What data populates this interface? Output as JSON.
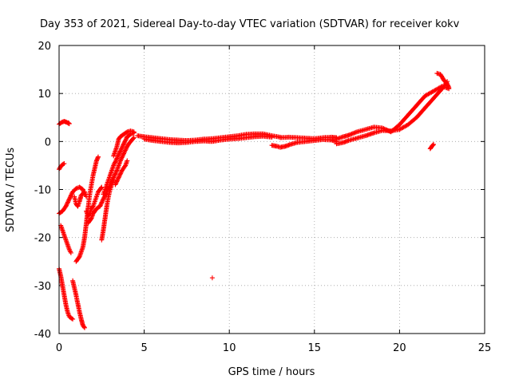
{
  "chart_data": {
    "type": "scatter",
    "title": "Day 353 of 2021, Sidereal Day-to-day VTEC variation (SDTVAR) for receiver kokv",
    "xlabel": "GPS time / hours",
    "ylabel": "SDTVAR / TECUs",
    "xlim": [
      0,
      25
    ],
    "ylim": [
      -40,
      20
    ],
    "x_ticks": [
      "0",
      "5",
      "10",
      "15",
      "20",
      "25"
    ],
    "y_ticks": [
      "20",
      "10",
      "0",
      "-10",
      "-20",
      "-30",
      "-40"
    ],
    "grid": true,
    "marker": "plus",
    "color": "#ff0000",
    "series": [
      {
        "name": "arc-1",
        "points": [
          [
            0.0,
            -5.8
          ],
          [
            0.1,
            -5.2
          ],
          [
            0.2,
            -4.8
          ],
          [
            0.3,
            -4.6
          ]
        ]
      },
      {
        "name": "arc-2",
        "points": [
          [
            0.0,
            3.6
          ],
          [
            0.15,
            4.0
          ],
          [
            0.3,
            4.2
          ],
          [
            0.45,
            4.0
          ],
          [
            0.6,
            3.7
          ],
          [
            0.55,
            3.9
          ]
        ]
      },
      {
        "name": "arc-3",
        "points": [
          [
            0.0,
            -15.0
          ],
          [
            0.2,
            -14.5
          ],
          [
            0.4,
            -13.5
          ],
          [
            0.6,
            -12.0
          ],
          [
            0.8,
            -10.5
          ],
          [
            1.0,
            -9.8
          ],
          [
            1.2,
            -9.5
          ],
          [
            1.4,
            -10.0
          ],
          [
            1.5,
            -11.0
          ]
        ]
      },
      {
        "name": "arc-4",
        "points": [
          [
            0.1,
            -17.5
          ],
          [
            0.2,
            -18.5
          ],
          [
            0.3,
            -19.5
          ],
          [
            0.4,
            -20.5
          ],
          [
            0.5,
            -21.5
          ],
          [
            0.6,
            -22.5
          ],
          [
            0.7,
            -23.2
          ]
        ]
      },
      {
        "name": "arc-5",
        "points": [
          [
            0.0,
            -26.5
          ],
          [
            0.1,
            -28.0
          ],
          [
            0.2,
            -30.0
          ],
          [
            0.3,
            -32.0
          ],
          [
            0.4,
            -34.0
          ],
          [
            0.5,
            -35.5
          ],
          [
            0.6,
            -36.5
          ],
          [
            0.8,
            -37.0
          ]
        ]
      },
      {
        "name": "arc-6",
        "points": [
          [
            0.8,
            -29.0
          ],
          [
            0.9,
            -30.5
          ],
          [
            1.0,
            -32.0
          ],
          [
            1.1,
            -33.8
          ],
          [
            1.2,
            -35.5
          ],
          [
            1.3,
            -37.0
          ],
          [
            1.4,
            -38.3
          ],
          [
            1.5,
            -38.8
          ]
        ]
      },
      {
        "name": "arc-7",
        "points": [
          [
            0.9,
            -11.5
          ],
          [
            1.0,
            -13.0
          ],
          [
            1.1,
            -13.5
          ],
          [
            1.2,
            -12.5
          ],
          [
            1.3,
            -11.2
          ],
          [
            1.5,
            -10.5
          ],
          [
            1.6,
            -11.5
          ]
        ]
      },
      {
        "name": "arc-8",
        "points": [
          [
            1.0,
            -25.0
          ],
          [
            1.1,
            -24.5
          ],
          [
            1.2,
            -24.0
          ],
          [
            1.3,
            -23.0
          ],
          [
            1.4,
            -22.0
          ],
          [
            1.5,
            -20.0
          ],
          [
            1.6,
            -17.0
          ],
          [
            1.7,
            -14.0
          ],
          [
            1.8,
            -11.0
          ],
          [
            1.9,
            -9.0
          ],
          [
            2.0,
            -7.0
          ],
          [
            2.1,
            -5.5
          ],
          [
            2.2,
            -4.0
          ],
          [
            2.3,
            -3.2
          ]
        ]
      },
      {
        "name": "arc-9",
        "points": [
          [
            1.6,
            -14.5
          ],
          [
            1.7,
            -15.5
          ],
          [
            1.8,
            -15.0
          ],
          [
            1.9,
            -14.0
          ],
          [
            2.0,
            -13.5
          ],
          [
            2.1,
            -12.5
          ],
          [
            2.2,
            -11.5
          ],
          [
            2.3,
            -10.5
          ],
          [
            2.4,
            -10.0
          ],
          [
            2.5,
            -9.5
          ]
        ]
      },
      {
        "name": "arc-10",
        "points": [
          [
            1.7,
            -17.0
          ],
          [
            1.8,
            -16.5
          ],
          [
            1.9,
            -16.0
          ],
          [
            2.0,
            -15.0
          ],
          [
            2.1,
            -14.5
          ],
          [
            2.2,
            -14.0
          ],
          [
            2.4,
            -13.5
          ],
          [
            2.6,
            -12.0
          ],
          [
            2.8,
            -10.5
          ],
          [
            3.0,
            -9.0
          ],
          [
            3.2,
            -7.5
          ],
          [
            3.4,
            -6.0
          ],
          [
            3.6,
            -4.0
          ],
          [
            3.8,
            -2.5
          ],
          [
            4.0,
            -1.0
          ],
          [
            4.2,
            0.0
          ],
          [
            4.4,
            0.8
          ]
        ]
      },
      {
        "name": "arc-11",
        "points": [
          [
            2.5,
            -20.5
          ],
          [
            2.6,
            -18.5
          ],
          [
            2.7,
            -16.0
          ],
          [
            2.8,
            -13.5
          ],
          [
            2.9,
            -11.5
          ],
          [
            3.0,
            -10.0
          ],
          [
            3.1,
            -9.0
          ],
          [
            3.2,
            -8.0
          ]
        ]
      },
      {
        "name": "arc-12",
        "points": [
          [
            2.6,
            -11.0
          ],
          [
            2.8,
            -9.0
          ],
          [
            3.0,
            -7.0
          ],
          [
            3.2,
            -5.0
          ],
          [
            3.4,
            -3.5
          ],
          [
            3.6,
            -2.0
          ],
          [
            3.8,
            -0.5
          ],
          [
            4.0,
            1.0
          ],
          [
            4.2,
            1.5
          ],
          [
            4.4,
            1.8
          ]
        ]
      },
      {
        "name": "arc-13",
        "points": [
          [
            3.2,
            -3.0
          ],
          [
            3.4,
            -1.0
          ],
          [
            3.5,
            0.5
          ],
          [
            3.6,
            1.0
          ],
          [
            3.8,
            1.5
          ],
          [
            4.0,
            2.0
          ],
          [
            4.2,
            2.2
          ],
          [
            4.4,
            2.0
          ]
        ]
      },
      {
        "name": "arc-14",
        "points": [
          [
            3.3,
            -9.0
          ],
          [
            3.5,
            -7.5
          ],
          [
            3.7,
            -6.0
          ],
          [
            3.9,
            -5.0
          ],
          [
            4.0,
            -4.0
          ]
        ]
      },
      {
        "name": "arc-15",
        "points": [
          [
            4.6,
            1.2
          ],
          [
            5.0,
            1.0
          ],
          [
            5.5,
            0.8
          ],
          [
            6.0,
            0.6
          ],
          [
            6.5,
            0.4
          ],
          [
            7.0,
            0.3
          ],
          [
            7.5,
            0.2
          ],
          [
            8.0,
            0.3
          ],
          [
            8.5,
            0.5
          ],
          [
            9.0,
            0.6
          ],
          [
            9.5,
            0.8
          ],
          [
            10.0,
            1.0
          ],
          [
            10.5,
            1.2
          ],
          [
            11.0,
            1.5
          ],
          [
            11.5,
            1.6
          ],
          [
            12.0,
            1.6
          ],
          [
            12.5,
            1.2
          ],
          [
            13.0,
            0.9
          ]
        ]
      },
      {
        "name": "arc-16",
        "points": [
          [
            5.0,
            0.5
          ],
          [
            5.5,
            0.2
          ],
          [
            6.0,
            0.0
          ],
          [
            6.5,
            -0.2
          ],
          [
            7.0,
            -0.3
          ],
          [
            7.5,
            -0.2
          ],
          [
            8.0,
            0.0
          ],
          [
            8.5,
            0.1
          ],
          [
            9.0,
            0.0
          ],
          [
            9.5,
            0.3
          ],
          [
            10.0,
            0.5
          ],
          [
            10.5,
            0.6
          ],
          [
            11.0,
            0.8
          ],
          [
            11.5,
            1.0
          ],
          [
            12.0,
            1.1
          ],
          [
            12.5,
            0.9
          ]
        ]
      },
      {
        "name": "arc-17",
        "points": [
          [
            12.5,
            -0.8
          ],
          [
            12.8,
            -1.0
          ],
          [
            13.0,
            -1.2
          ],
          [
            13.3,
            -1.0
          ],
          [
            13.6,
            -0.6
          ],
          [
            14.0,
            -0.2
          ],
          [
            14.5,
            0.0
          ],
          [
            15.0,
            0.2
          ],
          [
            15.5,
            0.4
          ],
          [
            16.0,
            0.3
          ],
          [
            16.3,
            0.0
          ]
        ]
      },
      {
        "name": "arc-18",
        "points": [
          [
            13.0,
            0.8
          ],
          [
            13.5,
            0.9
          ],
          [
            14.0,
            0.8
          ],
          [
            14.5,
            0.7
          ],
          [
            15.0,
            0.6
          ],
          [
            15.5,
            0.8
          ],
          [
            16.0,
            0.9
          ],
          [
            16.3,
            0.8
          ]
        ]
      },
      {
        "name": "arc-19",
        "points": [
          [
            16.3,
            -0.5
          ],
          [
            16.7,
            -0.2
          ],
          [
            17.0,
            0.2
          ],
          [
            17.5,
            0.7
          ],
          [
            18.0,
            1.2
          ],
          [
            18.5,
            1.8
          ],
          [
            19.0,
            2.3
          ],
          [
            19.5,
            2.2
          ],
          [
            20.0,
            2.5
          ],
          [
            20.5,
            3.5
          ],
          [
            21.0,
            5.0
          ],
          [
            21.5,
            7.0
          ],
          [
            22.0,
            9.0
          ],
          [
            22.5,
            11.0
          ],
          [
            22.8,
            12.5
          ]
        ]
      },
      {
        "name": "arc-20",
        "points": [
          [
            16.3,
            0.5
          ],
          [
            16.7,
            1.0
          ],
          [
            17.0,
            1.3
          ],
          [
            17.5,
            2.0
          ],
          [
            18.0,
            2.5
          ],
          [
            18.5,
            3.0
          ],
          [
            19.0,
            2.8
          ],
          [
            19.5,
            2.0
          ],
          [
            20.0,
            3.5
          ],
          [
            20.5,
            5.5
          ],
          [
            21.0,
            7.5
          ],
          [
            21.5,
            9.5
          ],
          [
            22.0,
            10.5
          ],
          [
            22.5,
            11.5
          ],
          [
            22.9,
            11.0
          ]
        ]
      },
      {
        "name": "arc-21",
        "points": [
          [
            21.8,
            -1.5
          ],
          [
            21.9,
            -1.0
          ],
          [
            22.0,
            -0.6
          ]
        ]
      },
      {
        "name": "arc-22",
        "points": [
          [
            22.2,
            14.2
          ],
          [
            22.4,
            14.0
          ],
          [
            22.6,
            12.8
          ],
          [
            22.8,
            12.0
          ],
          [
            22.9,
            11.2
          ]
        ]
      },
      {
        "name": "outlier",
        "points": [
          [
            9.0,
            -28.4
          ]
        ]
      }
    ]
  }
}
